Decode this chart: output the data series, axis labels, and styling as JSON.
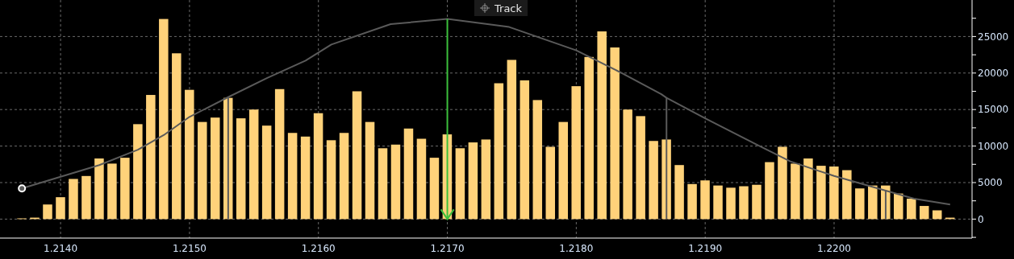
{
  "chart_data": {
    "type": "bar",
    "x": [
      1.2137,
      1.2138,
      1.2139,
      1.214,
      1.2141,
      1.2142,
      1.2143,
      1.2144,
      1.2145,
      1.2146,
      1.2147,
      1.2148,
      1.2149,
      1.215,
      1.2151,
      1.2152,
      1.2153,
      1.2154,
      1.2155,
      1.2156,
      1.2157,
      1.2158,
      1.2159,
      1.216,
      1.2161,
      1.2162,
      1.2163,
      1.2164,
      1.2165,
      1.2166,
      1.2167,
      1.2168,
      1.2169,
      1.217,
      1.2171,
      1.2172,
      1.2173,
      1.2174,
      1.2175,
      1.2176,
      1.2177,
      1.2178,
      1.2179,
      1.218,
      1.2181,
      1.2182,
      1.2183,
      1.2184,
      1.2185,
      1.2186,
      1.2187,
      1.2188,
      1.2189,
      1.219,
      1.2191,
      1.2192,
      1.2193,
      1.2194,
      1.2195,
      1.2196,
      1.2197,
      1.2198,
      1.2199,
      1.22,
      1.2201,
      1.2202,
      1.2203,
      1.2204,
      1.2205,
      1.2206,
      1.2207,
      1.2208,
      1.2209
    ],
    "series": [
      {
        "color": "#ffd27a",
        "values": [
          100,
          200,
          2000,
          3000,
          5500,
          5900,
          8300,
          7600,
          8400,
          13000,
          17000,
          27400,
          22700,
          17700,
          13300,
          13900,
          16600,
          13800,
          15000,
          12800,
          17800,
          11800,
          11300,
          14500,
          10800,
          11800,
          17500,
          13300,
          9700,
          10200,
          12400,
          11000,
          8400,
          11600,
          9700,
          10500,
          10900,
          18600,
          21800,
          19000,
          16300,
          9900,
          13300,
          18200,
          22200,
          25700,
          23500,
          15000,
          14100,
          10700,
          10900,
          7400,
          4800,
          5300,
          4600,
          4300,
          4500,
          4700,
          7800,
          9900,
          7600,
          8300,
          7300,
          7200,
          6700,
          4200,
          4600,
          4600,
          3500,
          2800,
          1800,
          1200,
          200
        ]
      },
      {
        "type": "line",
        "color": "#5a5a5a",
        "x": [
          1.2137,
          1.214,
          1.2143,
          1.2146,
          1.2148,
          1.215,
          1.2153,
          1.2156,
          1.2159,
          1.2161,
          1.21656,
          1.217,
          1.21748,
          1.218,
          1.21833,
          1.21866,
          1.2187,
          1.219,
          1.21941,
          1.21966,
          1.22,
          1.2204,
          1.22062,
          1.2209
        ],
        "values": [
          4200,
          5800,
          7400,
          9500,
          11500,
          14000,
          16700,
          19300,
          21700,
          23900,
          26700,
          27400,
          26300,
          23100,
          20200,
          17100,
          16600,
          13800,
          10100,
          7900,
          5900,
          3900,
          2800,
          2000
        ]
      }
    ],
    "ref_lines": [
      {
        "axis": "x",
        "value": 1.217,
        "color": "#3cbf3c"
      },
      {
        "axis": "x",
        "value": 1.2153,
        "color": "#5a5a5a"
      },
      {
        "axis": "x",
        "value": 1.2187,
        "color": "#5a5a5a"
      },
      {
        "axis": "x",
        "value": 1.2204,
        "color": "#5a5a5a"
      }
    ],
    "xlim": [
      1.21353,
      1.22107
    ],
    "xticks": [
      {
        "value": 1.214,
        "label": "1.2140"
      },
      {
        "value": 1.215,
        "label": "1.2150"
      },
      {
        "value": 1.216,
        "label": "1.2160"
      },
      {
        "value": 1.217,
        "label": "1.2170"
      },
      {
        "value": 1.218,
        "label": "1.2180"
      },
      {
        "value": 1.219,
        "label": "1.2190"
      },
      {
        "value": 1.22,
        "label": "1.2200"
      }
    ],
    "ylim": [
      -2600,
      30000
    ],
    "yticks": [
      {
        "value": -2500,
        "label": null
      },
      0,
      {
        "value": 2500,
        "label": null
      },
      5000,
      {
        "value": 7500,
        "label": null
      },
      10000,
      {
        "value": 12500,
        "label": null
      },
      15000,
      {
        "value": 17500,
        "label": null
      },
      20000,
      {
        "value": 22500,
        "label": null
      },
      25000,
      {
        "value": 27500,
        "label": null
      }
    ],
    "grid": true,
    "annotations": [
      "Track"
    ]
  }
}
